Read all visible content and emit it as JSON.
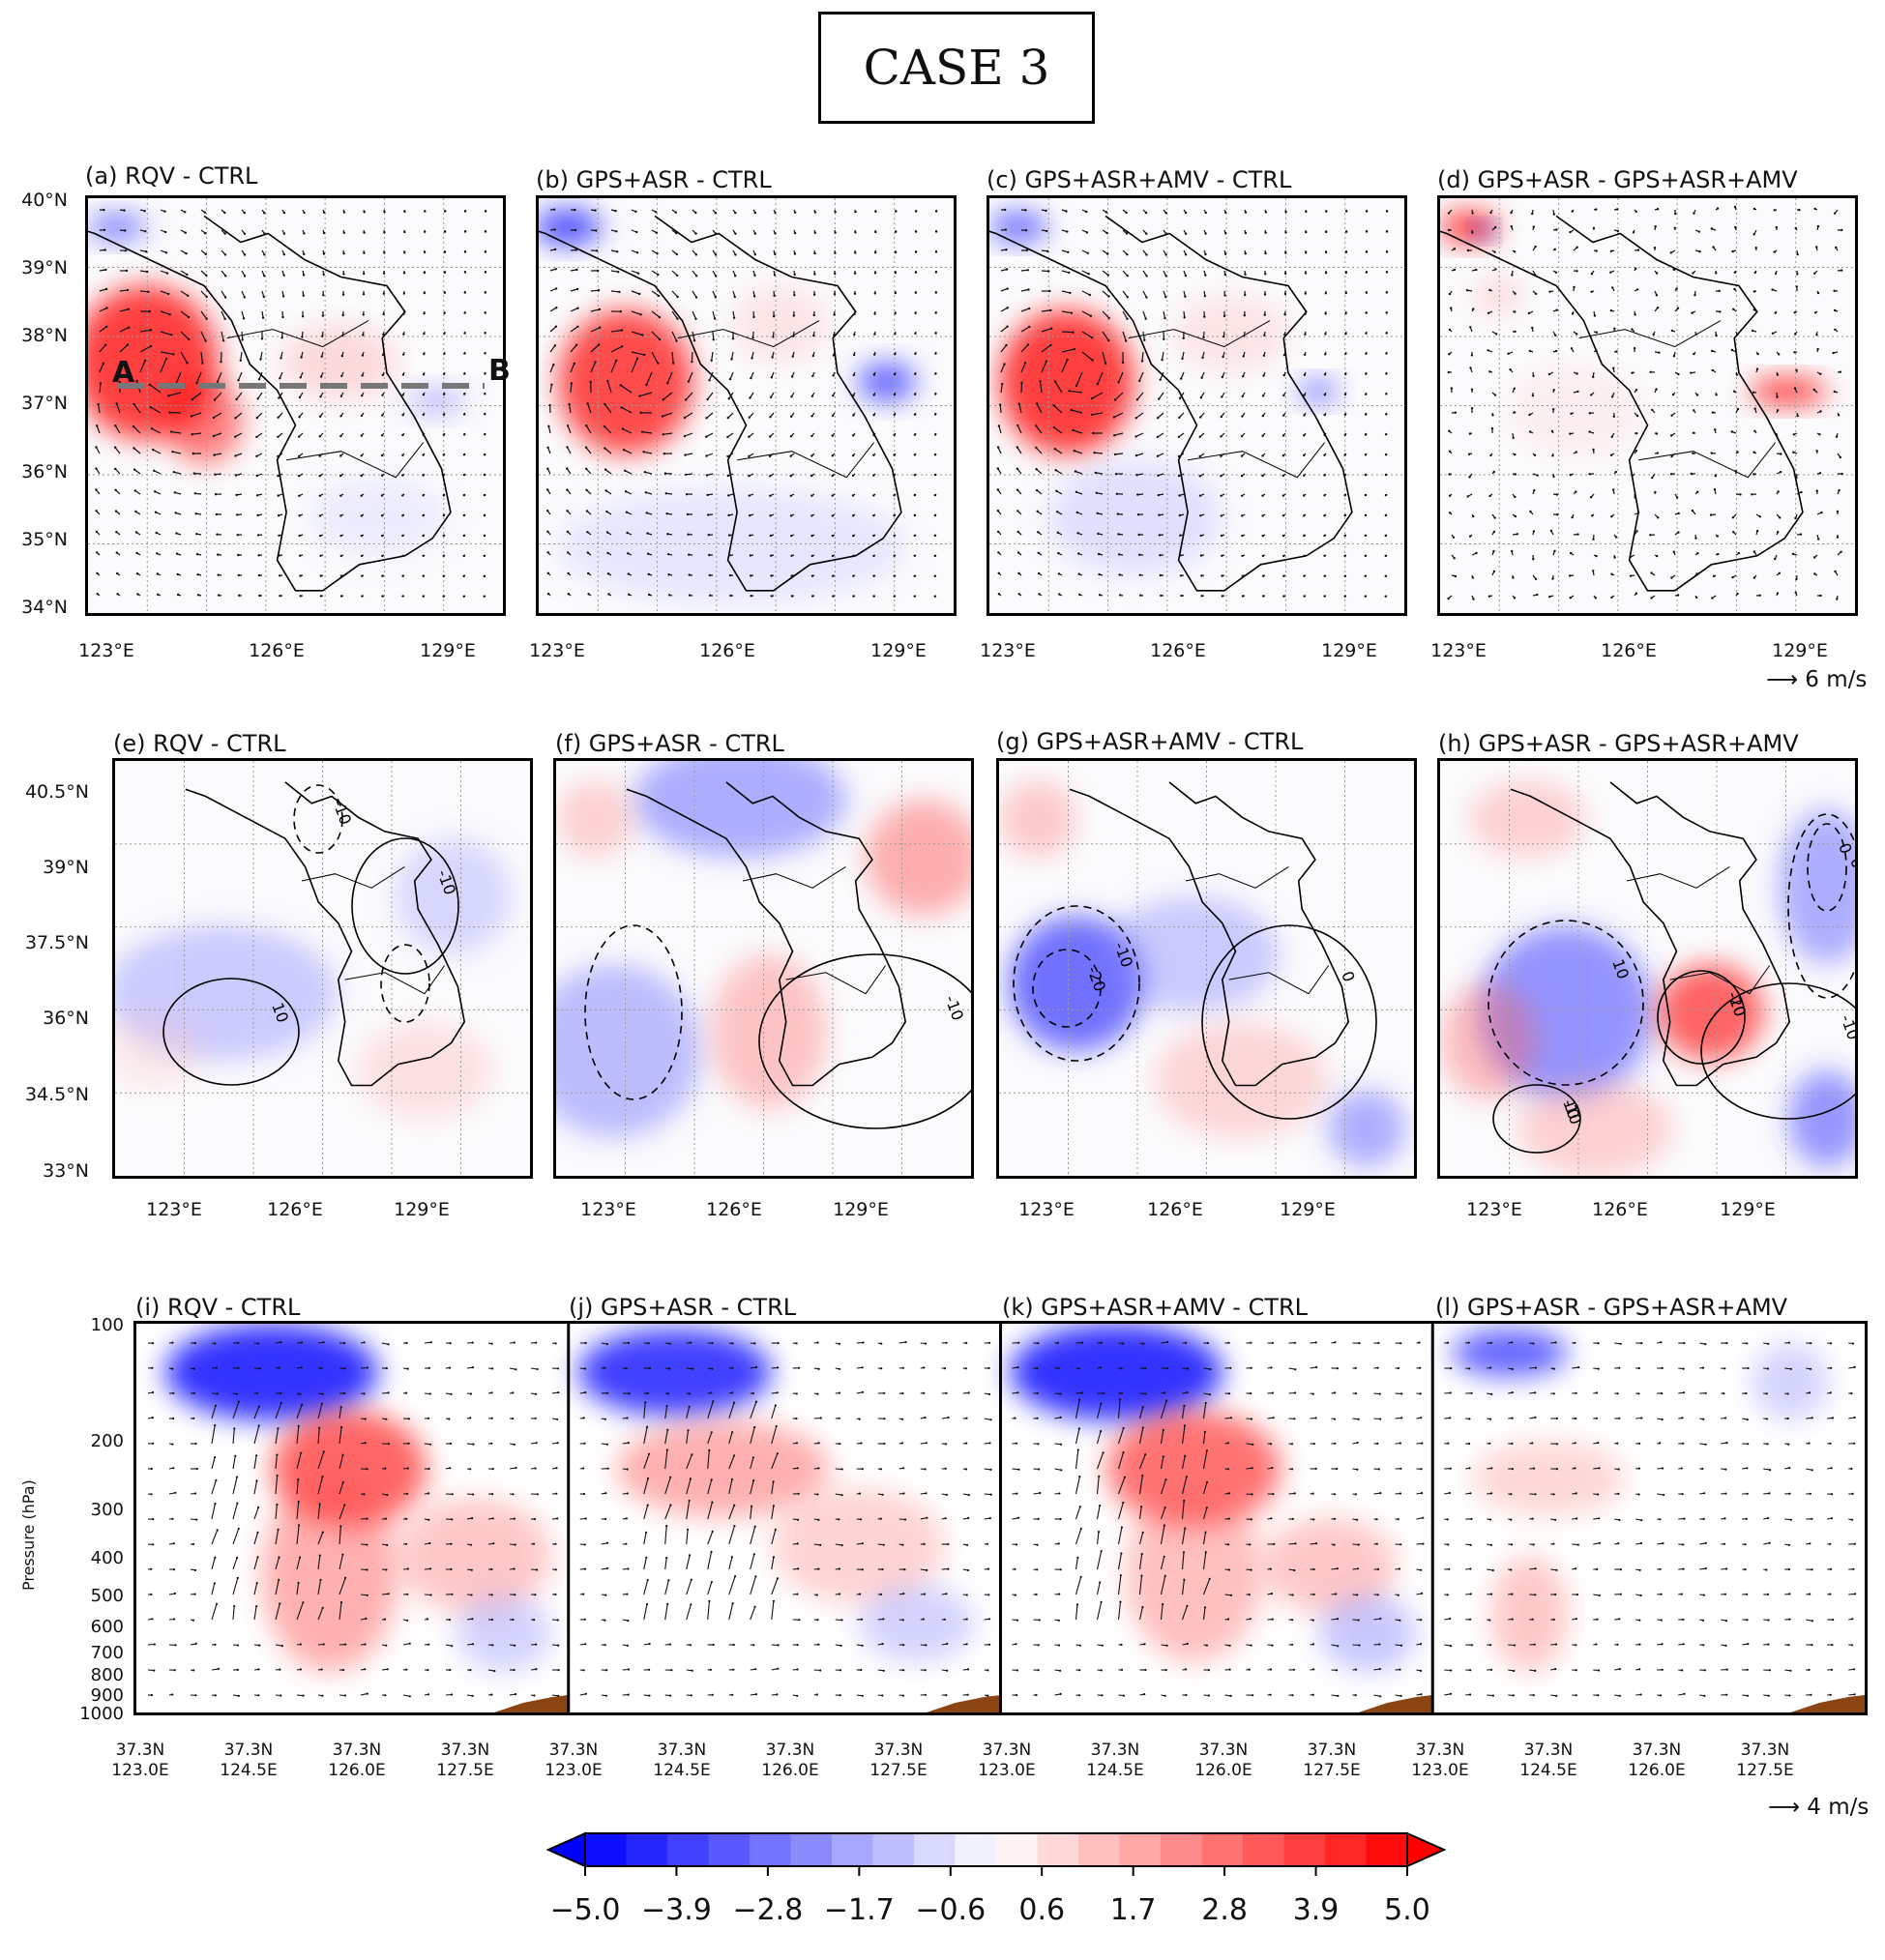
{
  "figure": {
    "header": "CASE 3"
  },
  "colors": {
    "neg": "#0000ff",
    "pos": "#ff0000",
    "zero": "#ffffff",
    "terrain": "#8b4513"
  },
  "row1": {
    "titles": [
      "(a)  RQV - CTRL",
      "(b)  GPS+ASR - CTRL",
      "(c)  GPS+ASR+AMV - CTRL",
      "(d)  GPS+ASR - GPS+ASR+AMV"
    ],
    "lat_labels": [
      "40°N",
      "39°N",
      "38°N",
      "37°N",
      "36°N",
      "35°N",
      "34°N"
    ],
    "lon_labels": [
      "123°E",
      "126°E",
      "129°E"
    ],
    "section_a": "A",
    "section_b": "B",
    "scale_label": "6 m/s"
  },
  "row2": {
    "titles": [
      "(e) RQV - CTRL",
      "(f) GPS+ASR - CTRL",
      "(g) GPS+ASR+AMV - CTRL",
      "(h) GPS+ASR - GPS+ASR+AMV"
    ],
    "lat_labels": [
      "40.5°N",
      "39°N",
      "37.5°N",
      "36°N",
      "34.5°N",
      "33°N"
    ],
    "lon_labels": [
      "123°E",
      "126°E",
      "129°E"
    ],
    "contour_labels": [
      [
        "-10",
        "10",
        "-10"
      ],
      [
        "-10"
      ],
      [
        "0",
        "-10",
        "-20"
      ],
      [
        "-20",
        "-10",
        "-10",
        "10",
        "0",
        "0",
        "-10",
        "10"
      ]
    ]
  },
  "row3": {
    "titles": [
      "(i) RQV - CTRL",
      "(j) GPS+ASR - CTRL",
      "(k) GPS+ASR+AMV - CTRL",
      "(l) GPS+ASR - GPS+ASR+AMV"
    ],
    "ylabel": "Pressure (hPa)",
    "pressure_labels": [
      "100",
      "200",
      "300",
      "400",
      "500",
      "600",
      "700",
      "800",
      "900",
      "1000"
    ],
    "x_tick_lat": [
      "37.3N",
      "37.3N",
      "37.3N",
      "37.3N"
    ],
    "x_tick_lon": [
      "123.0E",
      "124.5E",
      "126.0E",
      "127.5E"
    ],
    "last_lat": "37.3N",
    "scale_label": "4 m/s"
  },
  "chart_data": [
    {
      "type": "heatmap",
      "subplots": [
        "(a)  RQV - CTRL",
        "(b)  GPS+ASR - CTRL",
        "(c)  GPS+ASR+AMV - CTRL",
        "(d)  GPS+ASR - GPS+ASR+AMV"
      ],
      "x_range_deg_E": [
        123,
        130
      ],
      "y_range_deg_N": [
        34,
        40
      ],
      "overlay": "wind vectors",
      "vector_scale_ms": 6
    },
    {
      "type": "heatmap",
      "subplots": [
        "(e) RQV - CTRL",
        "(f) GPS+ASR - CTRL",
        "(g) GPS+ASR+AMV - CTRL",
        "(h) GPS+ASR - GPS+ASR+AMV"
      ],
      "x_range_deg_E": [
        121,
        131
      ],
      "y_range_deg_N": [
        33,
        41
      ],
      "overlay": "contours (-20, -10, 0, 10)"
    },
    {
      "type": "heatmap",
      "subplots": [
        "(i) RQV - CTRL",
        "(j) GPS+ASR - CTRL",
        "(k) GPS+ASR+AMV - CTRL",
        "(l) GPS+ASR - GPS+ASR+AMV"
      ],
      "x_range_deg_E": [
        123,
        129
      ],
      "y_range_hPa": [
        1000,
        100
      ],
      "y_scale": "log",
      "overlay": "wind vectors",
      "vector_scale_ms": 4
    }
  ],
  "colorbar": {
    "range": [
      -5.0,
      5.0
    ],
    "bins": 20,
    "extend": "both",
    "ticks": [
      "−5.0",
      "−3.9",
      "−2.8",
      "−1.7",
      "−0.6",
      "0.6",
      "1.7",
      "2.8",
      "3.9",
      "5.0"
    ]
  }
}
